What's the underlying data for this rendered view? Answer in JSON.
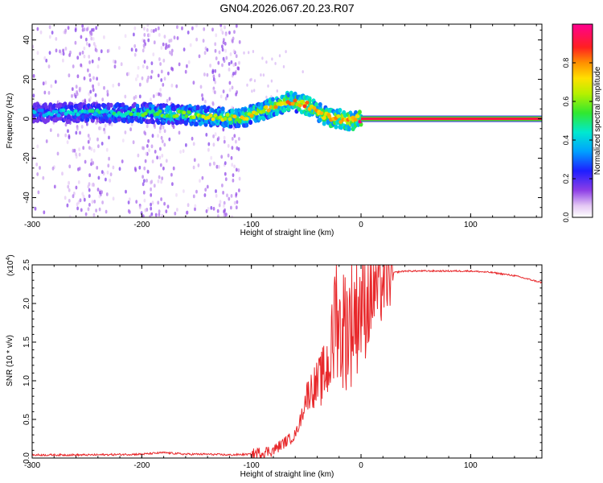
{
  "page_title": "GN04.2026.067.20.23.R07",
  "colorbar": {
    "label": "Normalized spectral amplitude",
    "ticks": [
      "0.0",
      "0.2",
      "0.4",
      "0.6",
      "0.8"
    ],
    "tick_values": [
      0.0,
      0.2,
      0.4,
      0.6,
      0.8
    ],
    "range": [
      0,
      1
    ]
  },
  "chart_data": [
    {
      "type": "heatmap",
      "title": "GN04.2026.067.20.23.R07",
      "xlabel": "Height of straight line (km)",
      "ylabel": "Frequency (Hz)",
      "xlim": [
        -300,
        165
      ],
      "ylim": [
        -50,
        48
      ],
      "xticks": [
        -300,
        -200,
        -100,
        0,
        100
      ],
      "xtick_labels": [
        "-300",
        "-200",
        "-100",
        "0",
        "100"
      ],
      "yticks": [
        -40,
        -20,
        0,
        20,
        40
      ],
      "ytick_labels": [
        "-40",
        "-20",
        "0",
        "20",
        "40"
      ],
      "ridge": {
        "description": "Dominant frequency ridge (Hz) vs height (km)",
        "x": [
          -300,
          -250,
          -200,
          -160,
          -130,
          -110,
          -100,
          -80,
          -65,
          -58,
          -50,
          -40,
          -35,
          -30,
          -20,
          -10,
          0,
          2,
          165
        ],
        "y": [
          3,
          3,
          3,
          2,
          1,
          0,
          2,
          6,
          9,
          8,
          7,
          4,
          2,
          1,
          0,
          -1,
          0,
          0,
          0
        ],
        "peak_amplitude_note": "Amplitude rises from ~0.2-0.4 at -300 km to ~0.9-1.0 for heights above 0 km"
      },
      "scatter_bands_km": [
        -255,
        -245,
        -195,
        -185,
        -130,
        -120
      ]
    },
    {
      "type": "line",
      "xlabel": "Height of straight line (km)",
      "ylabel": "SNR (10 * v/v)",
      "y_multiplier": "(x10",
      "y_multiplier_exp": "4",
      "y_multiplier_close": ")",
      "xlim": [
        -300,
        165
      ],
      "ylim": [
        0,
        2.5
      ],
      "xticks": [
        -300,
        -200,
        -100,
        0,
        100
      ],
      "xtick_labels": [
        "-300",
        "-200",
        "-100",
        "0",
        "100"
      ],
      "yticks": [
        0.0,
        0.5,
        1.0,
        1.5,
        2.0,
        2.5
      ],
      "ytick_labels": [
        "0.0",
        "0.5",
        "1.0",
        "1.5",
        "2.0",
        "2.5"
      ],
      "color": "#e8282b",
      "series": [
        {
          "name": "SNR",
          "x": [
            -300,
            -250,
            -200,
            -180,
            -160,
            -140,
            -120,
            -100,
            -80,
            -70,
            -60,
            -55,
            -50,
            -45,
            -40,
            -35,
            -30,
            -25,
            -23,
            -20,
            -15,
            -10,
            -5,
            0,
            5,
            10,
            20,
            30,
            40,
            60,
            80,
            100,
            120,
            140,
            165
          ],
          "y": [
            0.04,
            0.04,
            0.05,
            0.07,
            0.05,
            0.05,
            0.04,
            0.05,
            0.1,
            0.2,
            0.3,
            0.5,
            0.8,
            0.9,
            0.95,
            1.05,
            1.2,
            1.5,
            2.4,
            1.6,
            1.7,
            1.75,
            1.9,
            2.0,
            2.05,
            2.15,
            2.3,
            2.4,
            2.42,
            2.42,
            2.42,
            2.42,
            2.4,
            2.36,
            2.27
          ]
        }
      ]
    }
  ]
}
